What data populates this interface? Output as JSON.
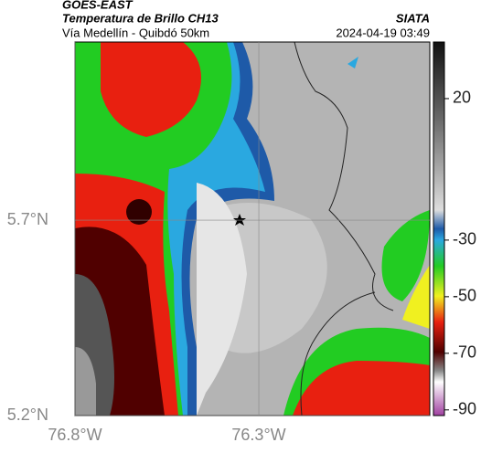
{
  "chart_data": {
    "type": "map",
    "title": "GOES-EAST",
    "subtitle": "Temperatura de Brillo CH13",
    "source": "SIATA",
    "region": "Vía Medellín - Quibdó 50km",
    "date": "2024-04-19 03:49",
    "xlim": [
      -76.8,
      -75.835
    ],
    "ylim": [
      5.2,
      6.156
    ],
    "xticks": [
      {
        "value": -76.8,
        "label": "76.8°W"
      },
      {
        "value": -76.3,
        "label": "76.3°W"
      }
    ],
    "yticks": [
      {
        "value": 5.7,
        "label": "5.7°N"
      },
      {
        "value": 5.2,
        "label": "5.2°N"
      }
    ],
    "grid": true,
    "colorbar": {
      "clim": [
        -92,
        40
      ],
      "ticks": [
        20,
        -30,
        -50,
        -70,
        -90
      ]
    }
  }
}
